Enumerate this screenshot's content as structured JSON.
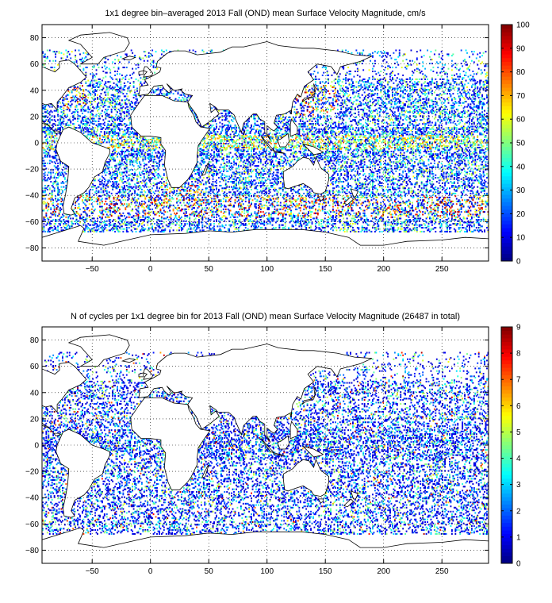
{
  "chart_data": [
    {
      "type": "heatmap",
      "title": "1x1 degree bin–averaged 2013 Fall (OND) mean Surface Velocity Magnitude, cm/s",
      "xlim": [
        -93,
        290
      ],
      "ylim": [
        -90,
        90
      ],
      "xticks": [
        -50,
        0,
        50,
        100,
        150,
        200,
        250
      ],
      "yticks": [
        -80,
        -60,
        -40,
        -20,
        0,
        20,
        40,
        60,
        80
      ],
      "colorbar": {
        "min": 0,
        "max": 100,
        "ticks": [
          0,
          10,
          20,
          30,
          40,
          50,
          60,
          70,
          80,
          90,
          100
        ]
      },
      "colormap": "jet",
      "grid": true
    },
    {
      "type": "heatmap",
      "title": "N of cycles per 1x1 degree bin for 2013 Fall (OND) mean Surface Velocity Magnitude (26487 in total)",
      "xlim": [
        -93,
        290
      ],
      "ylim": [
        -90,
        90
      ],
      "xticks": [
        -50,
        0,
        50,
        100,
        150,
        200,
        250
      ],
      "yticks": [
        -80,
        -60,
        -40,
        -20,
        0,
        20,
        40,
        60,
        80
      ],
      "colorbar": {
        "min": 0,
        "max": 9,
        "ticks": [
          0,
          1,
          2,
          3,
          4,
          5,
          6,
          7,
          8,
          9
        ]
      },
      "colormap": "jet",
      "grid": true
    }
  ]
}
